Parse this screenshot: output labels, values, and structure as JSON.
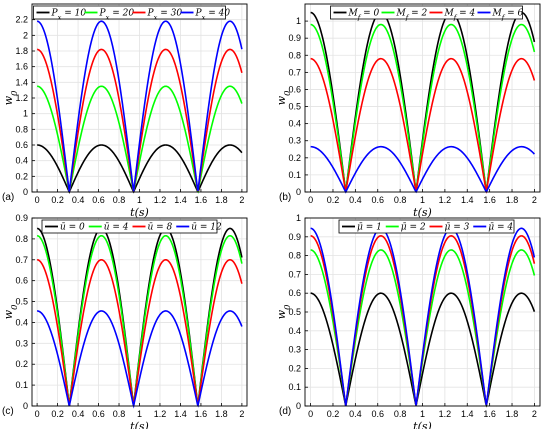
{
  "figure": {
    "xlabel": "t(s)",
    "ylabel": "w_0"
  },
  "chart_data": [
    {
      "panel_label": "(a)",
      "type": "line",
      "xlabel": "t(s)",
      "ylabel": "w_0",
      "xlim": [
        -0.05,
        2.05
      ],
      "ylim": [
        0,
        2.4
      ],
      "x_ticks": [
        "0",
        "0.2",
        "0.4",
        "0.6",
        "0.8",
        "1",
        "1.2",
        "1.4",
        "1.6",
        "1.8",
        "2"
      ],
      "y_ticks": [
        "0",
        "0.2",
        "0.4",
        "0.6",
        "0.8",
        "1",
        "1.2",
        "1.4",
        "1.6",
        "1.8",
        "2",
        "2.2"
      ],
      "grid": true,
      "legend_position": "top",
      "period": 0.628,
      "zero_offset": 0.314,
      "series": [
        {
          "name": "P_x = 10",
          "color": "#000000",
          "amplitude": 0.6
        },
        {
          "name": "P_x = 20",
          "color": "#00ff00",
          "amplitude": 1.35
        },
        {
          "name": "P_x = 30",
          "color": "#ff0000",
          "amplitude": 1.82
        },
        {
          "name": "P_x = 40",
          "color": "#0000ff",
          "amplitude": 2.18
        }
      ]
    },
    {
      "panel_label": "(b)",
      "type": "line",
      "xlabel": "t(s)",
      "ylabel": "w_0",
      "xlim": [
        -0.05,
        2.05
      ],
      "ylim": [
        0,
        1.1
      ],
      "x_ticks": [
        "0",
        "0.2",
        "0.4",
        "0.6",
        "0.8",
        "1",
        "1.2",
        "1.4",
        "1.6",
        "1.8",
        "2"
      ],
      "y_ticks": [
        "0",
        "0.1",
        "0.2",
        "0.3",
        "0.4",
        "0.5",
        "0.6",
        "0.7",
        "0.8",
        "0.9",
        "1"
      ],
      "grid": true,
      "legend_position": "top",
      "period": 0.628,
      "zero_offset": 0.314,
      "series": [
        {
          "name": "M_f = 0",
          "color": "#000000",
          "amplitude": 1.05
        },
        {
          "name": "M_f = 2",
          "color": "#00ff00",
          "amplitude": 0.98
        },
        {
          "name": "M_f = 4",
          "color": "#ff0000",
          "amplitude": 0.78
        },
        {
          "name": "M_f = 6",
          "color": "#0000ff",
          "amplitude": 0.265
        }
      ]
    },
    {
      "panel_label": "(c)",
      "type": "line",
      "xlabel": "t(s)",
      "ylabel": "w_0",
      "xlim": [
        -0.05,
        2.05
      ],
      "ylim": [
        0,
        0.9
      ],
      "x_ticks": [
        "0",
        "0.2",
        "0.4",
        "0.6",
        "0.8",
        "1",
        "1.2",
        "1.4",
        "1.6",
        "1.8",
        "2"
      ],
      "y_ticks": [
        "0",
        "0.1",
        "0.2",
        "0.3",
        "0.4",
        "0.5",
        "0.6",
        "0.7",
        "0.8",
        "0.9"
      ],
      "grid": true,
      "legend_position": "top",
      "period": 0.628,
      "zero_offset": 0.314,
      "series": [
        {
          "name": "ū = 0",
          "color": "#000000",
          "amplitude": 0.85
        },
        {
          "name": "ū = 4",
          "color": "#00ff00",
          "amplitude": 0.815
        },
        {
          "name": "ū = 8",
          "color": "#ff0000",
          "amplitude": 0.7
        },
        {
          "name": "ū = 12",
          "color": "#0000ff",
          "amplitude": 0.455
        }
      ]
    },
    {
      "panel_label": "(d)",
      "type": "line",
      "xlabel": "t(s)",
      "ylabel": "w_0",
      "xlim": [
        -0.05,
        2.05
      ],
      "ylim": [
        0,
        1.0
      ],
      "x_ticks": [
        "0",
        "0.2",
        "0.4",
        "0.6",
        "0.8",
        "1",
        "1.2",
        "1.4",
        "1.6",
        "1.8",
        "2"
      ],
      "y_ticks": [
        "0",
        "0.1",
        "0.2",
        "0.3",
        "0.4",
        "0.5",
        "0.6",
        "0.7",
        "0.8",
        "0.9",
        "1"
      ],
      "grid": true,
      "legend_position": "top",
      "period": 0.628,
      "zero_offset": 0.314,
      "series": [
        {
          "name": "μ̄ = 1",
          "color": "#000000",
          "amplitude": 0.6
        },
        {
          "name": "μ̄ = 2",
          "color": "#00ff00",
          "amplitude": 0.83
        },
        {
          "name": "μ̄ = 3",
          "color": "#ff0000",
          "amplitude": 0.905
        },
        {
          "name": "μ̄ = 4",
          "color": "#0000ff",
          "amplitude": 0.945
        }
      ]
    }
  ]
}
